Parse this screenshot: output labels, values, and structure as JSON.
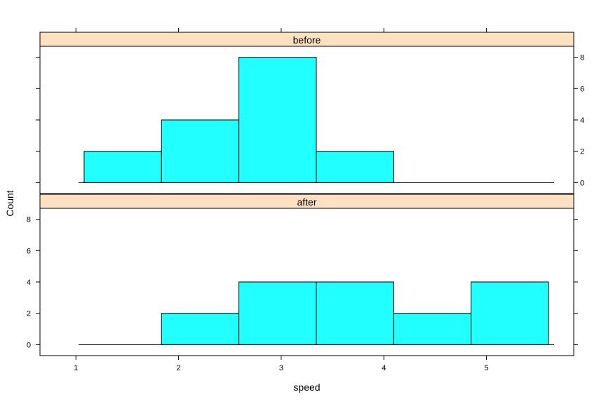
{
  "chart_data": {
    "type": "bar",
    "chart_kind": "histogram (lattice)",
    "xlabel": "speed",
    "ylabel": "Count",
    "xlim": [
      0.65,
      5.85
    ],
    "ylim": [
      -0.7,
      8.7
    ],
    "x_ticks": [
      1,
      2,
      3,
      4,
      5
    ],
    "y_ticks": [
      0,
      2,
      4,
      6,
      8
    ],
    "bar_color": "#21FFFF",
    "strip_color": "#FFE0C0",
    "bin_edges": [
      1.08,
      1.834,
      2.588,
      3.342,
      4.096,
      4.85,
      5.604
    ],
    "panels": [
      {
        "name": "before",
        "values": [
          2,
          4,
          8,
          2,
          0,
          0
        ]
      },
      {
        "name": "after",
        "values": [
          0,
          2,
          4,
          4,
          2,
          4
        ]
      }
    ]
  }
}
